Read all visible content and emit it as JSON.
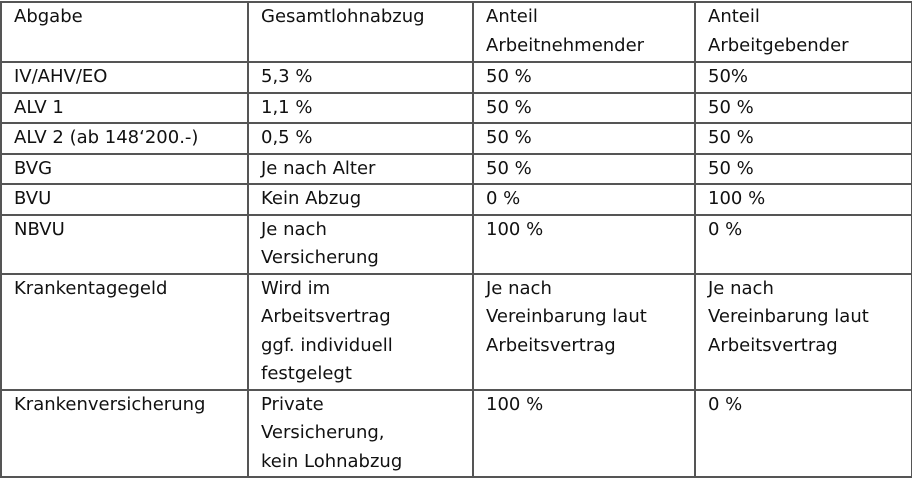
{
  "table": {
    "headers": [
      "Abgabe",
      "Gesamtlohnabzug",
      "Anteil\nArbeitnehmender",
      "Anteil\nArbeitgebender"
    ],
    "rows": [
      [
        "IV/AHV/EO",
        "5,3 %",
        "50 %",
        "50%"
      ],
      [
        "ALV 1",
        "1,1 %",
        "50 %",
        "50 %"
      ],
      [
        "ALV 2 (ab 148‘200.-)",
        "0,5 %",
        "50 %",
        "50 %"
      ],
      [
        "BVG",
        "Je nach Alter",
        "50 %",
        "50 %"
      ],
      [
        "BVU",
        "Kein Abzug",
        "0 %",
        "100 %"
      ],
      [
        "NBVU",
        "Je nach\nVersicherung",
        "100 %",
        "0 %"
      ],
      [
        "Krankentagegeld",
        "Wird im\nArbeitsvertrag\nggf. individuell\nfestgelegt",
        "Je nach\nVereinbarung laut\nArbeitsvertrag",
        "Je nach\nVereinbarung laut\nArbeitsvertrag"
      ],
      [
        "Krankenversicherung",
        "Private\nVersicherung,\nkein Lohnabzug",
        "100 %",
        "0 %"
      ]
    ]
  }
}
